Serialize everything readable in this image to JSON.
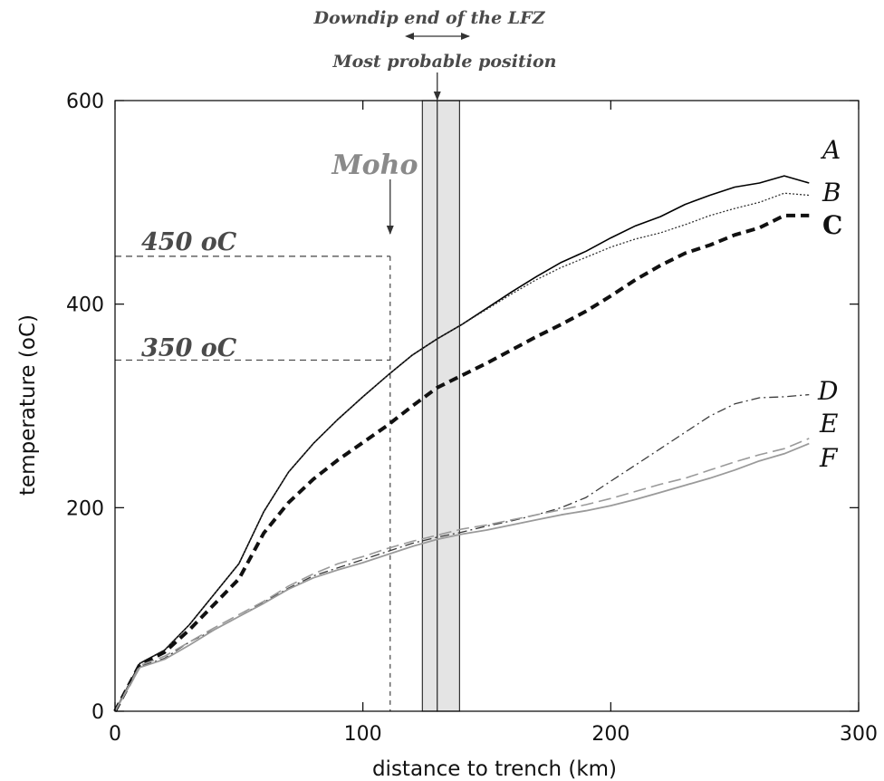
{
  "chart_data": {
    "type": "line",
    "xlabel": "distance to trench (km)",
    "ylabel": "temperature (oC)",
    "xlim": [
      0,
      300
    ],
    "ylim": [
      0,
      600
    ],
    "xticks": [
      "0",
      "100",
      "200",
      "300"
    ],
    "yticks": [
      "0",
      "200",
      "400",
      "600"
    ],
    "series": [
      {
        "name": "A",
        "color": "#000000",
        "style": "solid-thin",
        "x": [
          0,
          10,
          20,
          30,
          40,
          50,
          60,
          70,
          80,
          90,
          100,
          110,
          120,
          130,
          140,
          150,
          160,
          170,
          180,
          190,
          200,
          210,
          220,
          230,
          240,
          250,
          260,
          270,
          280
        ],
        "y": [
          0,
          47,
          60,
          85,
          115,
          145,
          196,
          235,
          263,
          287,
          309,
          330,
          350,
          366,
          380,
          396,
          412,
          427,
          441,
          452,
          465,
          477,
          486,
          498,
          507,
          515,
          519,
          526,
          519
        ]
      },
      {
        "name": "B",
        "color": "#333333",
        "style": "dotted",
        "x": [
          0,
          10,
          20,
          30,
          40,
          50,
          60,
          70,
          80,
          90,
          100,
          110,
          120,
          130,
          140,
          150,
          160,
          170,
          180,
          190,
          200,
          210,
          220,
          230,
          240,
          250,
          260,
          270,
          280
        ],
        "y": [
          0,
          47,
          60,
          85,
          115,
          145,
          196,
          235,
          263,
          287,
          309,
          330,
          350,
          366,
          380,
          395,
          410,
          424,
          436,
          446,
          456,
          464,
          470,
          478,
          487,
          494,
          500,
          509,
          507
        ]
      },
      {
        "name": "C",
        "color": "#111111",
        "style": "dashed-bold",
        "x": [
          0,
          10,
          20,
          30,
          40,
          50,
          60,
          70,
          80,
          90,
          100,
          110,
          120,
          130,
          140,
          150,
          160,
          170,
          180,
          190,
          200,
          210,
          220,
          230,
          240,
          250,
          260,
          270,
          280
        ],
        "y": [
          0,
          46,
          58,
          80,
          105,
          130,
          175,
          205,
          228,
          247,
          264,
          281,
          300,
          318,
          330,
          342,
          355,
          368,
          380,
          393,
          408,
          424,
          438,
          450,
          458,
          468,
          475,
          487,
          487
        ]
      },
      {
        "name": "D",
        "color": "#3a3a3a",
        "style": "dash-dot",
        "x": [
          0,
          10,
          20,
          30,
          40,
          50,
          60,
          70,
          80,
          90,
          100,
          110,
          120,
          130,
          140,
          150,
          160,
          170,
          180,
          190,
          200,
          210,
          220,
          230,
          240,
          250,
          260,
          270,
          280
        ],
        "y": [
          0,
          44,
          52,
          68,
          80,
          93,
          107,
          121,
          133,
          141,
          149,
          157,
          165,
          171,
          176,
          182,
          187,
          193,
          200,
          210,
          226,
          242,
          258,
          274,
          290,
          302,
          308,
          309,
          311
        ]
      },
      {
        "name": "E",
        "color": "#9a9a9a",
        "style": "dashed-light",
        "x": [
          0,
          10,
          20,
          30,
          40,
          50,
          60,
          70,
          80,
          90,
          100,
          110,
          120,
          130,
          140,
          150,
          160,
          170,
          180,
          190,
          200,
          210,
          220,
          230,
          240,
          250,
          260,
          270,
          280
        ],
        "y": [
          0,
          45,
          54,
          68,
          82,
          95,
          108,
          123,
          135,
          145,
          152,
          160,
          167,
          173,
          179,
          183,
          188,
          193,
          198,
          203,
          209,
          216,
          223,
          229,
          237,
          245,
          252,
          258,
          268
        ]
      },
      {
        "name": "F",
        "color": "#9a9a9a",
        "style": "solid-light",
        "x": [
          0,
          10,
          20,
          30,
          40,
          50,
          60,
          70,
          80,
          90,
          100,
          110,
          120,
          130,
          140,
          150,
          160,
          170,
          180,
          190,
          200,
          210,
          220,
          230,
          240,
          250,
          260,
          270,
          280
        ],
        "y": [
          0,
          43,
          51,
          65,
          80,
          93,
          106,
          120,
          131,
          139,
          146,
          154,
          162,
          169,
          174,
          178,
          183,
          188,
          193,
          197,
          202,
          208,
          215,
          222,
          229,
          237,
          246,
          253,
          263
        ]
      }
    ],
    "annotations": {
      "moho_label": "Moho",
      "moho_x": 111,
      "iso450_label": "450 oC",
      "iso450_value": 447,
      "iso350_label": "350 oC",
      "iso350_value": 345,
      "lfz_label": "Downdip end of the LFZ",
      "probable_label": "Most probable position",
      "probable_x": 130,
      "lfz_band_x": [
        124,
        139
      ]
    },
    "grid": false
  }
}
